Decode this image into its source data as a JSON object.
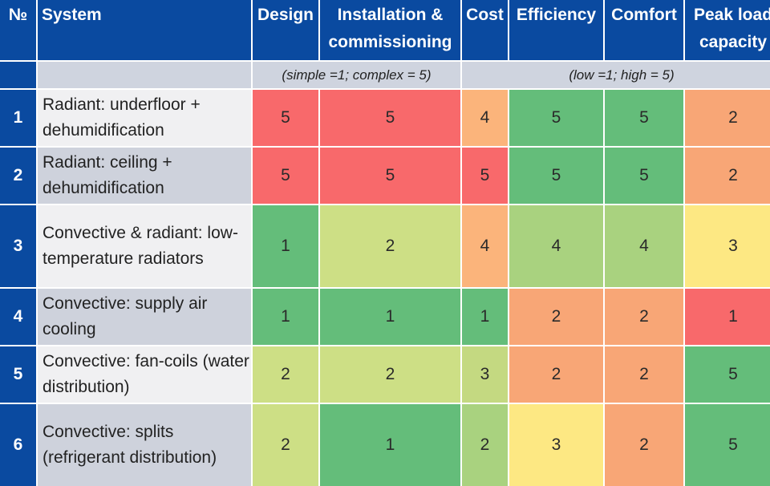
{
  "headers": {
    "number": "№",
    "system": "System",
    "design": "Design",
    "installation": "Installation & commissioning",
    "cost": "Cost",
    "efficiency": "Efficiency",
    "comfort": "Comfort",
    "peak_load": "Peak load capacity"
  },
  "scales": {
    "complexity": "(simple =1; complex = 5)",
    "performance": "(low =1; high = 5)"
  },
  "rows": [
    {
      "n": "1",
      "system": "Radiant: underfloor + dehumidification",
      "design": "5",
      "installation": "5",
      "cost": "4",
      "efficiency": "5",
      "comfort": "5",
      "peak_load": "2"
    },
    {
      "n": "2",
      "system": "Radiant: ceiling + dehumidification",
      "design": "5",
      "installation": "5",
      "cost": "5",
      "efficiency": "5",
      "comfort": "5",
      "peak_load": "2"
    },
    {
      "n": "3",
      "system": "Convective & radiant: low-temperature radiators",
      "design": "1",
      "installation": "2",
      "cost": "4",
      "efficiency": "4",
      "comfort": "4",
      "peak_load": "3"
    },
    {
      "n": "4",
      "system": "Convective: supply air cooling",
      "design": "1",
      "installation": "1",
      "cost": "1",
      "efficiency": "2",
      "comfort": "2",
      "peak_load": "1"
    },
    {
      "n": "5",
      "system": "Convective: fan-coils (water distribution)",
      "design": "2",
      "installation": "2",
      "cost": "3",
      "efficiency": "2",
      "comfort": "2",
      "peak_load": "5"
    },
    {
      "n": "6",
      "system": "Convective: splits (refrigerant distribution)",
      "design": "2",
      "installation": "1",
      "cost": "2",
      "efficiency": "3",
      "comfort": "2",
      "peak_load": "5"
    }
  ],
  "colors": {
    "header_blue": "#0a4aa0",
    "red": "#f8696b",
    "orange": "#f8a676",
    "yellow": "#fde883",
    "light_green": "#cddf85",
    "green": "#64bd7a"
  },
  "cell_colors": [
    [
      "#f8696b",
      "#f8696b",
      "#fbb47b",
      "#64bd7a",
      "#64bd7a",
      "#f8a676"
    ],
    [
      "#f8696b",
      "#f8696b",
      "#f8696b",
      "#64bd7a",
      "#64bd7a",
      "#f8a676"
    ],
    [
      "#64bd7a",
      "#cddf85",
      "#fbb47b",
      "#a9d27f",
      "#a9d27f",
      "#fde883"
    ],
    [
      "#64bd7a",
      "#64bd7a",
      "#64bd7a",
      "#f8a676",
      "#f8a676",
      "#f8696b"
    ],
    [
      "#cddf85",
      "#cddf85",
      "#c4d981",
      "#f8a676",
      "#f8a676",
      "#64bd7a"
    ],
    [
      "#cddf85",
      "#64bd7a",
      "#a9d27f",
      "#fde883",
      "#f8a676",
      "#64bd7a"
    ]
  ]
}
